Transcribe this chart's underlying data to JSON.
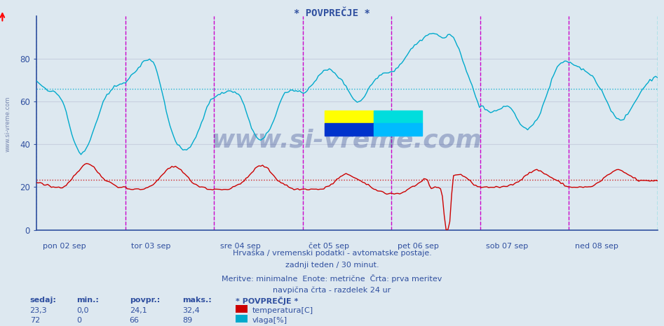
{
  "title": "* POVPREČJE *",
  "bg_color": "#dde8f0",
  "plot_bg_color": "#dde8f0",
  "ylim": [
    0,
    100
  ],
  "yticks": [
    0,
    20,
    40,
    60,
    80
  ],
  "grid_color": "#b8c8d8",
  "grid_color_h": "#c8d0e0",
  "temp_color": "#cc0000",
  "hum_color": "#00aacc",
  "temp_avg": 23.3,
  "hum_avg": 66,
  "temp_min": "0,0",
  "temp_max": "32,4",
  "temp_povpr": "24,1",
  "hum_sedaj": 72,
  "hum_min": 0,
  "hum_max": 89,
  "hum_povpr": 66,
  "temp_sedaj": "23,3",
  "day_labels": [
    "pon 02 sep",
    "tor 03 sep",
    "sre 04 sep",
    "čet 05 sep",
    "pet 06 sep",
    "sob 07 sep",
    "ned 08 sep"
  ],
  "subtitle1": "Hrvaška / vremenski podatki - avtomatske postaje.",
  "subtitle2": "zadnji teden / 30 minut.",
  "subtitle3": "Meritve: minimalne  Enote: metrične  Črta: prva meritev",
  "subtitle4": "navpična črta - razdelek 24 ur",
  "legend_title": "* POVPREČJE *",
  "text_color": "#3050a0",
  "watermark": "www.si-vreme.com",
  "num_points": 336,
  "logo_colors": [
    "#ffff00",
    "#00ccff",
    "#0033cc",
    "#008888"
  ]
}
